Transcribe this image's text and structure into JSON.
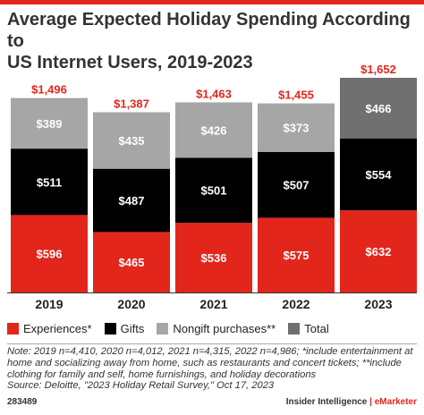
{
  "title_line1": "Average Expected Holiday Spending According to",
  "title_line2": "US Internet Users, 2019-2023",
  "colors": {
    "Experiences*": "#e2261c",
    "Gifts": "#000000",
    "Nongift purchases**": "#a6a6a6",
    "Total": "#707070",
    "accent": "#e2261c"
  },
  "chart_data": {
    "type": "bar",
    "stacked": true,
    "categories": [
      "2019",
      "2020",
      "2021",
      "2022",
      "2023"
    ],
    "series": [
      {
        "name": "Experiences*",
        "values": [
          596,
          465,
          536,
          575,
          632
        ],
        "labels": [
          "$596",
          "$465",
          "$536",
          "$575",
          "$632"
        ]
      },
      {
        "name": "Gifts",
        "values": [
          511,
          487,
          501,
          507,
          554
        ],
        "labels": [
          "$511",
          "$487",
          "$501",
          "$507",
          "$554"
        ]
      },
      {
        "name": "Nongift purchases**",
        "values": [
          389,
          435,
          426,
          373,
          466
        ],
        "labels": [
          "$389",
          "$435",
          "$426",
          "$373",
          "$466"
        ]
      }
    ],
    "totals": [
      1496,
      1387,
      1463,
      1455,
      1652
    ],
    "total_labels": [
      "$1,496",
      "$1,387",
      "$1,463",
      "$1,455",
      "$1,652"
    ],
    "total_bar_index": 4,
    "ylim": [
      0,
      1700
    ],
    "legend_position": "bottom-left",
    "grid": false
  },
  "legend": [
    {
      "label": "Experiences*",
      "color": "#e2261c"
    },
    {
      "label": "Gifts",
      "color": "#000000"
    },
    {
      "label": "Nongift purchases**",
      "color": "#a6a6a6"
    },
    {
      "label": "Total",
      "color": "#707070"
    }
  ],
  "note_lines": [
    "Note: 2019 n=4,410, 2020 n=4,012, 2021 n=4,315, 2022 n=4,986; *include entertainment at",
    "home and socializing away from home, such as restaurants and concert tickets; **include",
    "clothing for family and self, home furnishings, and holiday decorations",
    "Source: Deloitte, \"2023 Holiday Retail Survey,\" Oct 17, 2023"
  ],
  "footer_id": "283489",
  "brand": {
    "left": "Insider Intelligence",
    "sep": "|",
    "right": "eMarketer"
  }
}
